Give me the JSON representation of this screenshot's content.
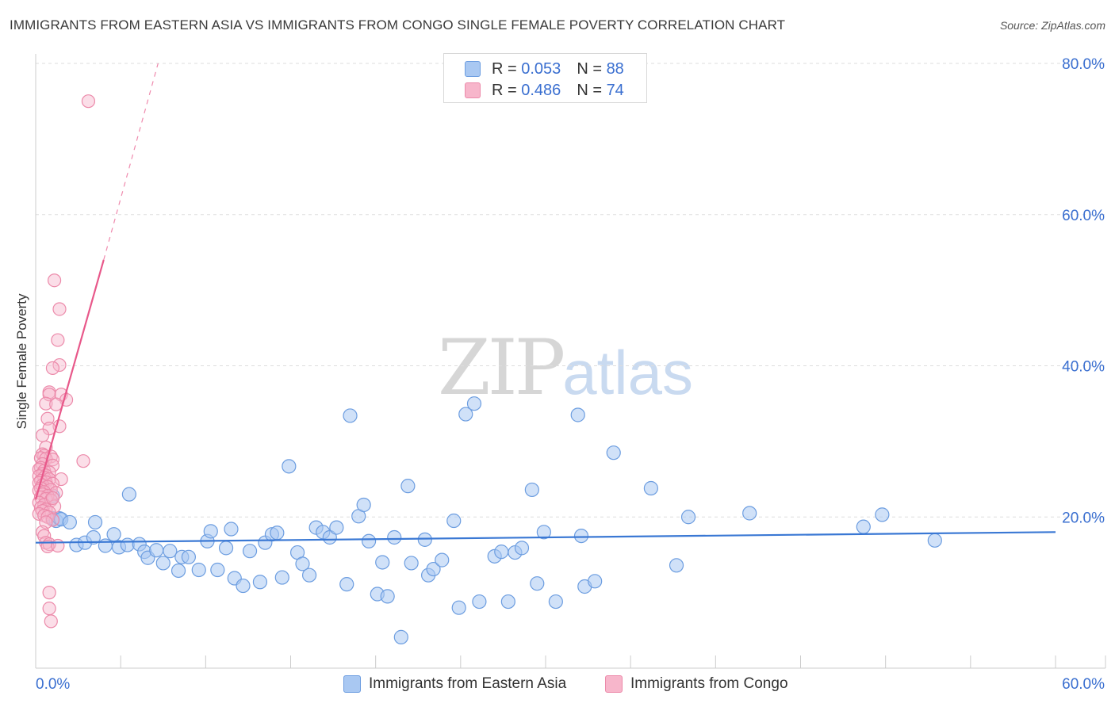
{
  "title": "IMMIGRANTS FROM EASTERN ASIA VS IMMIGRANTS FROM CONGO SINGLE FEMALE POVERTY CORRELATION CHART",
  "source": "Source: ZipAtlas.com",
  "watermark": {
    "zip": "ZIP",
    "atlas": "atlas"
  },
  "legend": {
    "r_label": "R = ",
    "n_label": "N = ",
    "rows": [
      {
        "r": "0.053",
        "n": "88"
      },
      {
        "r": "0.486",
        "n": "74"
      }
    ]
  },
  "colors": {
    "blue_fill": "#a9c8f2",
    "blue_stroke": "#6c9de0",
    "blue_line": "#3a78d4",
    "pink_fill": "#f7b6cb",
    "pink_stroke": "#ec8aaa",
    "pink_line": "#e8588a",
    "axis_text": "#3a6fd0",
    "grid": "#dddddd"
  },
  "chart_data": {
    "type": "scatter",
    "title": "IMMIGRANTS FROM EASTERN ASIA VS IMMIGRANTS FROM CONGO SINGLE FEMALE POVERTY CORRELATION CHART",
    "xlabel": "",
    "ylabel": "Single Female Poverty",
    "xlim": [
      0,
      60
    ],
    "ylim": [
      0,
      80
    ],
    "x_tick_labels": [
      "0.0%",
      "60.0%"
    ],
    "y_ticks": [
      20,
      40,
      60,
      80
    ],
    "y_tick_labels": [
      "20.0%",
      "40.0%",
      "60.0%",
      "80.0%"
    ],
    "series": [
      {
        "name": "Immigrants from Eastern Asia",
        "r": 0.053,
        "n": 88,
        "trend": {
          "x0": 0,
          "y0": 16.6,
          "x1": 60,
          "y1": 18.0
        },
        "points": [
          [
            1.0,
            22.8
          ],
          [
            1.0,
            19.8
          ],
          [
            1.2,
            19.5
          ],
          [
            1.4,
            19.8
          ],
          [
            1.5,
            19.7
          ],
          [
            2.0,
            19.3
          ],
          [
            2.4,
            16.3
          ],
          [
            2.9,
            16.6
          ],
          [
            3.4,
            17.3
          ],
          [
            3.5,
            19.3
          ],
          [
            4.1,
            16.2
          ],
          [
            4.6,
            17.7
          ],
          [
            4.9,
            16.0
          ],
          [
            5.4,
            16.3
          ],
          [
            5.5,
            23.0
          ],
          [
            6.1,
            16.4
          ],
          [
            6.4,
            15.4
          ],
          [
            6.6,
            14.6
          ],
          [
            7.1,
            15.6
          ],
          [
            7.5,
            13.9
          ],
          [
            7.9,
            15.5
          ],
          [
            8.4,
            12.9
          ],
          [
            8.6,
            14.7
          ],
          [
            9.0,
            14.7
          ],
          [
            9.6,
            13.0
          ],
          [
            10.1,
            16.8
          ],
          [
            10.3,
            18.1
          ],
          [
            10.7,
            13.0
          ],
          [
            11.2,
            15.9
          ],
          [
            11.5,
            18.4
          ],
          [
            11.7,
            11.9
          ],
          [
            12.2,
            10.9
          ],
          [
            12.6,
            15.5
          ],
          [
            13.2,
            11.4
          ],
          [
            13.5,
            16.6
          ],
          [
            13.9,
            17.7
          ],
          [
            14.2,
            17.9
          ],
          [
            14.5,
            12.0
          ],
          [
            14.9,
            26.7
          ],
          [
            15.4,
            15.3
          ],
          [
            15.7,
            13.8
          ],
          [
            16.1,
            12.3
          ],
          [
            16.5,
            18.6
          ],
          [
            16.9,
            18.0
          ],
          [
            17.3,
            17.3
          ],
          [
            17.7,
            18.6
          ],
          [
            18.3,
            11.1
          ],
          [
            18.5,
            33.4
          ],
          [
            19.0,
            20.1
          ],
          [
            19.3,
            21.6
          ],
          [
            19.6,
            16.8
          ],
          [
            20.1,
            9.8
          ],
          [
            20.4,
            14.0
          ],
          [
            20.7,
            9.5
          ],
          [
            21.1,
            17.3
          ],
          [
            21.9,
            24.1
          ],
          [
            22.1,
            13.9
          ],
          [
            22.9,
            17.0
          ],
          [
            23.1,
            12.3
          ],
          [
            23.4,
            13.1
          ],
          [
            23.9,
            14.3
          ],
          [
            24.6,
            19.5
          ],
          [
            24.9,
            8.0
          ],
          [
            25.3,
            33.6
          ],
          [
            25.8,
            35.0
          ],
          [
            26.1,
            8.8
          ],
          [
            27.0,
            14.8
          ],
          [
            27.4,
            15.4
          ],
          [
            27.8,
            8.8
          ],
          [
            28.2,
            15.3
          ],
          [
            28.6,
            15.9
          ],
          [
            29.2,
            23.6
          ],
          [
            29.5,
            11.2
          ],
          [
            29.9,
            18.0
          ],
          [
            30.6,
            8.8
          ],
          [
            31.9,
            33.5
          ],
          [
            32.1,
            17.5
          ],
          [
            32.3,
            10.8
          ],
          [
            32.9,
            11.5
          ],
          [
            34.0,
            28.5
          ],
          [
            36.2,
            23.8
          ],
          [
            37.7,
            13.6
          ],
          [
            38.4,
            20.0
          ],
          [
            42.0,
            20.5
          ],
          [
            48.7,
            18.7
          ],
          [
            49.8,
            20.3
          ],
          [
            52.9,
            16.9
          ],
          [
            21.5,
            4.1
          ]
        ]
      },
      {
        "name": "Immigrants from Congo",
        "r": 0.486,
        "n": 74,
        "trend": {
          "x0": 0,
          "y0": 22.3,
          "x1": 4.0,
          "y1": 54.0,
          "dash_x1": 7.2,
          "dash_y1": 80.0
        },
        "points": [
          [
            3.1,
            75.0
          ],
          [
            1.1,
            51.3
          ],
          [
            1.4,
            47.5
          ],
          [
            1.3,
            43.4
          ],
          [
            1.4,
            40.1
          ],
          [
            1.0,
            39.7
          ],
          [
            0.8,
            36.5
          ],
          [
            0.8,
            36.2
          ],
          [
            1.5,
            36.2
          ],
          [
            1.8,
            35.5
          ],
          [
            0.6,
            35.0
          ],
          [
            1.2,
            34.9
          ],
          [
            0.7,
            33.0
          ],
          [
            1.4,
            32.0
          ],
          [
            0.8,
            31.7
          ],
          [
            0.4,
            30.8
          ],
          [
            0.6,
            29.2
          ],
          [
            0.4,
            28.3
          ],
          [
            0.5,
            28.1
          ],
          [
            0.9,
            28.0
          ],
          [
            0.3,
            27.8
          ],
          [
            0.6,
            27.7
          ],
          [
            1.0,
            27.6
          ],
          [
            2.8,
            27.4
          ],
          [
            0.4,
            27.0
          ],
          [
            1.0,
            26.8
          ],
          [
            0.3,
            26.5
          ],
          [
            0.2,
            26.3
          ],
          [
            0.5,
            26.1
          ],
          [
            0.8,
            25.9
          ],
          [
            0.4,
            25.7
          ],
          [
            0.6,
            25.5
          ],
          [
            0.2,
            25.4
          ],
          [
            0.5,
            25.2
          ],
          [
            0.8,
            25.0
          ],
          [
            1.5,
            25.0
          ],
          [
            0.3,
            24.8
          ],
          [
            0.6,
            24.6
          ],
          [
            0.2,
            24.5
          ],
          [
            1.0,
            24.4
          ],
          [
            0.4,
            24.2
          ],
          [
            0.7,
            24.0
          ],
          [
            0.3,
            23.8
          ],
          [
            0.9,
            23.6
          ],
          [
            0.2,
            23.5
          ],
          [
            0.5,
            23.3
          ],
          [
            1.2,
            23.2
          ],
          [
            0.4,
            23.0
          ],
          [
            0.7,
            22.8
          ],
          [
            0.3,
            22.6
          ],
          [
            0.6,
            22.4
          ],
          [
            0.9,
            22.2
          ],
          [
            0.2,
            21.9
          ],
          [
            0.5,
            21.6
          ],
          [
            1.1,
            21.4
          ],
          [
            0.3,
            21.2
          ],
          [
            0.6,
            21.0
          ],
          [
            0.4,
            20.8
          ],
          [
            0.8,
            20.6
          ],
          [
            0.2,
            20.4
          ],
          [
            0.5,
            20.2
          ],
          [
            0.7,
            20.0
          ],
          [
            1.0,
            19.6
          ],
          [
            0.6,
            19.3
          ],
          [
            0.4,
            18.0
          ],
          [
            0.5,
            17.5
          ],
          [
            0.6,
            16.6
          ],
          [
            0.8,
            16.4
          ],
          [
            0.7,
            16.1
          ],
          [
            1.3,
            16.2
          ],
          [
            0.8,
            10.0
          ],
          [
            0.8,
            7.9
          ],
          [
            0.9,
            6.2
          ],
          [
            1.0,
            22.5
          ]
        ]
      }
    ]
  }
}
